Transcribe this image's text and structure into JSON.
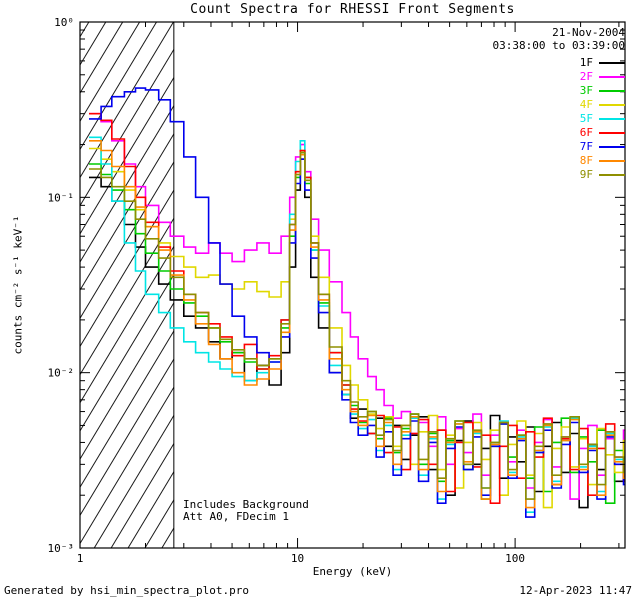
{
  "title": "Count Spectra for RHESSI Front Segments",
  "annotations": {
    "date": "21-Nov-2004",
    "time_range": "03:38:00 to 03:39:00",
    "note_background": "Includes Background",
    "note_att": "Att A0, FDecim 1"
  },
  "footer": {
    "left": "Generated by hsi_min_spectra_plot.pro",
    "right": "12-Apr-2023 11:47"
  },
  "chart_data": {
    "type": "line",
    "mode": "histogram-step",
    "title": "Count Spectra for RHESSI Front Segments",
    "xlabel": "Energy (keV)",
    "ylabel": "counts cm⁻² s⁻¹ keV⁻¹",
    "xscale": "log",
    "yscale": "log",
    "xlim": [
      1,
      320
    ],
    "ylim": [
      0.001,
      1
    ],
    "x_ticks": [
      1,
      10,
      100
    ],
    "y_ticks": [
      0.001,
      0.01,
      0.1,
      1
    ],
    "legend_position": "top-right-inside",
    "hatch_region": {
      "from": 1,
      "to": 2.7
    },
    "energies": [
      1.1,
      1.25,
      1.4,
      1.6,
      1.8,
      2.0,
      2.3,
      2.6,
      3.0,
      3.4,
      3.9,
      4.4,
      5.0,
      5.7,
      6.5,
      7.4,
      8.4,
      9.2,
      9.8,
      10.3,
      10.8,
      11.5,
      12.5,
      14,
      16,
      17.5,
      19,
      21,
      23,
      25,
      27.5,
      30,
      33,
      36,
      40,
      44,
      48,
      53,
      58,
      64,
      70,
      77,
      85,
      93,
      102,
      112,
      123,
      135,
      148,
      163,
      179,
      197,
      216,
      238,
      261,
      287,
      315
    ],
    "series": [
      {
        "name": "1F",
        "color": "#000000",
        "values": [
          0.13,
          0.115,
          0.095,
          0.07,
          0.052,
          0.04,
          0.032,
          0.026,
          0.021,
          0.018,
          0.015,
          0.012,
          0.013,
          0.009,
          0.011,
          0.0085,
          0.013,
          0.04,
          0.11,
          0.165,
          0.1,
          0.035,
          0.018,
          0.01,
          0.0075,
          0.0055,
          0.0062,
          0.0045,
          0.0055,
          0.0038,
          0.005,
          0.0032,
          0.0044,
          0.0056,
          0.0028,
          0.0047,
          0.002,
          0.0041,
          0.0053,
          0.003,
          0.0037,
          0.0057,
          0.0025,
          0.0043,
          0.0031,
          0.0049,
          0.0021,
          0.0038,
          0.0052,
          0.0027,
          0.0045,
          0.0017,
          0.0039,
          0.0028,
          0.0046,
          0.0024,
          0.0033
        ]
      },
      {
        "name": "2F",
        "color": "#ff00ff",
        "values": [
          0.3,
          0.27,
          0.21,
          0.155,
          0.115,
          0.09,
          0.072,
          0.06,
          0.052,
          0.048,
          0.055,
          0.048,
          0.043,
          0.05,
          0.055,
          0.048,
          0.06,
          0.1,
          0.17,
          0.2,
          0.14,
          0.075,
          0.05,
          0.033,
          0.022,
          0.016,
          0.012,
          0.0095,
          0.008,
          0.0065,
          0.0055,
          0.006,
          0.0045,
          0.0052,
          0.0038,
          0.0056,
          0.003,
          0.0048,
          0.0035,
          0.0058,
          0.0026,
          0.0044,
          0.0052,
          0.0031,
          0.0047,
          0.0022,
          0.004,
          0.0054,
          0.0029,
          0.0043,
          0.0019,
          0.0037,
          0.005,
          0.0026,
          0.0042,
          0.0033,
          0.0047
        ]
      },
      {
        "name": "3F",
        "color": "#00cc00",
        "values": [
          0.155,
          0.135,
          0.11,
          0.085,
          0.062,
          0.048,
          0.038,
          0.03,
          0.025,
          0.021,
          0.018,
          0.015,
          0.013,
          0.0115,
          0.0105,
          0.012,
          0.018,
          0.06,
          0.13,
          0.18,
          0.12,
          0.05,
          0.025,
          0.013,
          0.0085,
          0.0065,
          0.0052,
          0.006,
          0.0042,
          0.0055,
          0.0035,
          0.0048,
          0.0058,
          0.003,
          0.0045,
          0.0024,
          0.0041,
          0.0053,
          0.0028,
          0.0046,
          0.0019,
          0.0038,
          0.0051,
          0.0033,
          0.0044,
          0.0025,
          0.0049,
          0.0021,
          0.004,
          0.0055,
          0.0027,
          0.0043,
          0.0031,
          0.0047,
          0.0018,
          0.0036,
          0.0029
        ]
      },
      {
        "name": "4F",
        "color": "#e0d800",
        "values": [
          0.19,
          0.165,
          0.14,
          0.11,
          0.085,
          0.068,
          0.055,
          0.046,
          0.04,
          0.035,
          0.036,
          0.032,
          0.03,
          0.033,
          0.029,
          0.027,
          0.033,
          0.075,
          0.14,
          0.185,
          0.13,
          0.06,
          0.035,
          0.018,
          0.011,
          0.0085,
          0.007,
          0.0058,
          0.0048,
          0.0056,
          0.0038,
          0.005,
          0.003,
          0.0046,
          0.0057,
          0.0028,
          0.0044,
          0.0022,
          0.004,
          0.0052,
          0.0032,
          0.0047,
          0.002,
          0.0039,
          0.0053,
          0.0026,
          0.0045,
          0.0017,
          0.0037,
          0.0049,
          0.0029,
          0.0042,
          0.0023,
          0.0048,
          0.0034,
          0.0027,
          0.0041
        ]
      },
      {
        "name": "5F",
        "color": "#00e5e5",
        "values": [
          0.22,
          0.155,
          0.095,
          0.055,
          0.038,
          0.028,
          0.022,
          0.018,
          0.015,
          0.013,
          0.0115,
          0.0105,
          0.0095,
          0.009,
          0.01,
          0.0115,
          0.02,
          0.08,
          0.16,
          0.21,
          0.13,
          0.05,
          0.024,
          0.011,
          0.0075,
          0.0058,
          0.0048,
          0.0054,
          0.0036,
          0.005,
          0.0028,
          0.0044,
          0.0055,
          0.0026,
          0.0042,
          0.0019,
          0.0039,
          0.0051,
          0.003,
          0.0045,
          0.0022,
          0.004,
          0.0053,
          0.0027,
          0.0043,
          0.0016,
          0.0036,
          0.0049,
          0.0024,
          0.0041,
          0.0055,
          0.0029,
          0.0038,
          0.0021,
          0.0045,
          0.0032,
          0.0026
        ]
      },
      {
        "name": "6F",
        "color": "#ff0000",
        "values": [
          0.3,
          0.275,
          0.215,
          0.15,
          0.1,
          0.072,
          0.052,
          0.038,
          0.028,
          0.022,
          0.019,
          0.016,
          0.0125,
          0.0145,
          0.0105,
          0.0125,
          0.02,
          0.07,
          0.14,
          0.185,
          0.13,
          0.055,
          0.028,
          0.013,
          0.0085,
          0.0062,
          0.0053,
          0.0045,
          0.0057,
          0.0035,
          0.0049,
          0.0028,
          0.0045,
          0.0054,
          0.003,
          0.0047,
          0.0021,
          0.004,
          0.0052,
          0.0029,
          0.0044,
          0.0018,
          0.0038,
          0.005,
          0.0025,
          0.0046,
          0.0033,
          0.0055,
          0.0023,
          0.0042,
          0.0028,
          0.0048,
          0.002,
          0.0037,
          0.0051,
          0.003,
          0.0024
        ]
      },
      {
        "name": "7F",
        "color": "#0000ee",
        "values": [
          0.28,
          0.33,
          0.375,
          0.4,
          0.42,
          0.41,
          0.36,
          0.27,
          0.17,
          0.1,
          0.055,
          0.032,
          0.021,
          0.016,
          0.013,
          0.0115,
          0.016,
          0.055,
          0.12,
          0.165,
          0.11,
          0.045,
          0.022,
          0.01,
          0.007,
          0.0052,
          0.0044,
          0.005,
          0.0033,
          0.0046,
          0.0026,
          0.0042,
          0.0053,
          0.0024,
          0.004,
          0.0018,
          0.0037,
          0.0049,
          0.0028,
          0.0043,
          0.002,
          0.0038,
          0.0051,
          0.0025,
          0.0041,
          0.0015,
          0.0035,
          0.0047,
          0.0022,
          0.0039,
          0.0052,
          0.0027,
          0.0036,
          0.0019,
          0.0043,
          0.003,
          0.0023
        ]
      },
      {
        "name": "8F",
        "color": "#ff8800",
        "values": [
          0.21,
          0.185,
          0.15,
          0.115,
          0.088,
          0.068,
          0.05,
          0.036,
          0.026,
          0.019,
          0.0145,
          0.012,
          0.01,
          0.0085,
          0.0092,
          0.0105,
          0.017,
          0.065,
          0.135,
          0.175,
          0.125,
          0.052,
          0.026,
          0.012,
          0.008,
          0.006,
          0.005,
          0.0057,
          0.0038,
          0.0052,
          0.003,
          0.0046,
          0.0056,
          0.0028,
          0.0043,
          0.0021,
          0.004,
          0.0051,
          0.0031,
          0.0046,
          0.0019,
          0.0039,
          0.0052,
          0.0026,
          0.0042,
          0.0017,
          0.0036,
          0.005,
          0.0023,
          0.0041,
          0.0054,
          0.0028,
          0.0037,
          0.002,
          0.0044,
          0.0031,
          0.0025
        ]
      },
      {
        "name": "9F",
        "color": "#8f8f00",
        "values": [
          0.145,
          0.13,
          0.115,
          0.095,
          0.075,
          0.058,
          0.045,
          0.035,
          0.028,
          0.022,
          0.018,
          0.0155,
          0.0135,
          0.012,
          0.011,
          0.012,
          0.019,
          0.07,
          0.135,
          0.18,
          0.125,
          0.055,
          0.028,
          0.014,
          0.009,
          0.0068,
          0.0056,
          0.006,
          0.0044,
          0.0054,
          0.0036,
          0.005,
          0.0058,
          0.0032,
          0.0046,
          0.0025,
          0.0042,
          0.0053,
          0.003,
          0.0047,
          0.0022,
          0.004,
          0.0052,
          0.0028,
          0.0044,
          0.0019,
          0.0038,
          0.0051,
          0.0026,
          0.0043,
          0.0056,
          0.003,
          0.0039,
          0.0023,
          0.0046,
          0.0033,
          0.0027
        ]
      }
    ]
  }
}
